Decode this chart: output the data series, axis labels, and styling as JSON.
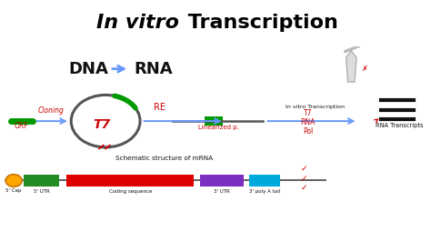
{
  "title_italic": "In vitro",
  "title_normal": " Transcription",
  "title_bg": "#FFFF00",
  "title_text_color": "#000000",
  "bg_color": "#FFFFFF",
  "dna_text": "DNA",
  "rna_text": "RNA",
  "arrow_color": "#6699FF",
  "t7_text": "T7",
  "cloning_text": "Cloning",
  "orf_text": "ORF",
  "re_text": "RE",
  "linearized_text": "Linearized p.",
  "in_vitro_label": "In vitro Transcription",
  "t7_pol_label": "T7\nRNA\nPol",
  "rna_transcripts_label": "RNA Transcripts",
  "mrna_label": "Schematic structure of mRNA",
  "cap_color": "#FFA500",
  "utr5_color": "#228B22",
  "cds_color": "#DD0000",
  "utr3_color": "#7B2FBE",
  "polya_color": "#00AADD",
  "red_annot_color": "#CC0000",
  "circle_color": "#555555",
  "green_insert_color": "#009900",
  "line_color": "#555555",
  "black": "#111111"
}
